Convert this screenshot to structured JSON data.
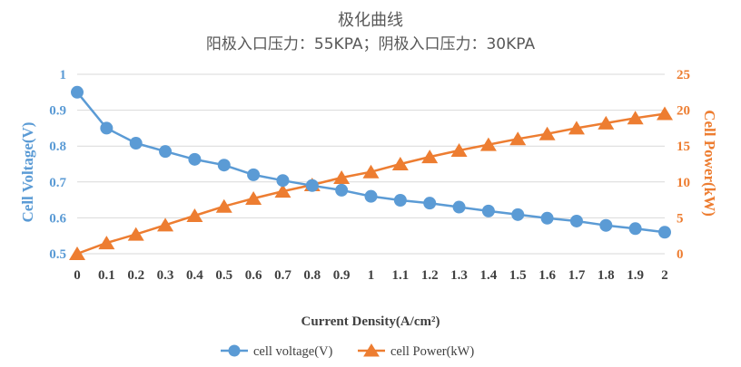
{
  "colors": {
    "voltage": "#5b9bd5",
    "power": "#ed7d31",
    "grid": "#d9d9d9",
    "text": "#404040",
    "title": "#595959"
  },
  "chart_data": {
    "type": "line",
    "title": "极化曲线",
    "subtitle": "阳极入口压力：55KPA；阴极入口压力：30KPA",
    "xlabel": "Current Density(A/cm²)",
    "ylabel_left": "Cell Voltage(V)",
    "ylabel_right": "Cell Power(kW)",
    "x": [
      0,
      0.1,
      0.2,
      0.3,
      0.4,
      0.5,
      0.6,
      0.7,
      0.8,
      0.9,
      1,
      1.1,
      1.2,
      1.3,
      1.4,
      1.5,
      1.6,
      1.7,
      1.8,
      1.9,
      2
    ],
    "x_tick_labels": [
      "0",
      "0.1",
      "0.2",
      "0.3",
      "0.4",
      "0.5",
      "0.6",
      "0.7",
      "0.8",
      "0.9",
      "1",
      "1.1",
      "1.2",
      "1.3",
      "1.4",
      "1.5",
      "1.6",
      "1.7",
      "1.8",
      "1.9",
      "2"
    ],
    "ylim_left": [
      0.5,
      1
    ],
    "yticks_left": [
      "0.5",
      "0.6",
      "0.7",
      "0.8",
      "0.9",
      "1"
    ],
    "ylim_right": [
      0,
      25
    ],
    "yticks_right": [
      "0",
      "5",
      "10",
      "15",
      "20",
      "25"
    ],
    "grid": true,
    "legend_position": "bottom",
    "series": [
      {
        "name": "cell voltage(V)",
        "axis": "left",
        "marker": "circle",
        "values": [
          0.95,
          0.85,
          0.808,
          0.785,
          0.763,
          0.747,
          0.72,
          0.704,
          0.69,
          0.677,
          0.66,
          0.649,
          0.641,
          0.63,
          0.619,
          0.609,
          0.599,
          0.591,
          0.579,
          0.57,
          0.56
        ]
      },
      {
        "name": "cell Power(kW)",
        "axis": "right",
        "marker": "triangle",
        "values": [
          0,
          1.5,
          2.7,
          4.0,
          5.3,
          6.6,
          7.7,
          8.7,
          9.6,
          10.6,
          11.4,
          12.5,
          13.5,
          14.4,
          15.2,
          16.0,
          16.7,
          17.5,
          18.2,
          18.9,
          19.5
        ]
      }
    ]
  }
}
